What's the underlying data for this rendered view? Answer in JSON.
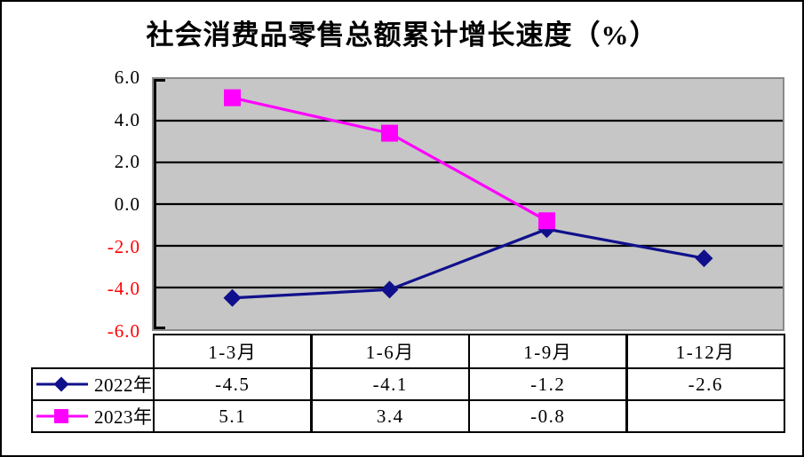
{
  "title": "社会消费品零售总额累计增长速度（%）",
  "colors": {
    "series_2022": "#10108C",
    "series_2023": "#FF00FF",
    "plot_background": "#C6C6C6",
    "gridline": "#000000",
    "axis": "#000000",
    "tick_label_positive": "#000000",
    "tick_label_negative": "#FF0000",
    "table_border": "#000000"
  },
  "chart_data": {
    "type": "line",
    "title": "社会消费品零售总额累计增长速度（%）",
    "categories": [
      "1-3月",
      "1-6月",
      "1-9月",
      "1-12月"
    ],
    "series": [
      {
        "name": "2022年",
        "marker": "diamond",
        "color": "#10108C",
        "values": [
          -4.5,
          -4.1,
          -1.2,
          -2.6
        ]
      },
      {
        "name": "2023年",
        "marker": "square",
        "color": "#FF00FF",
        "values": [
          5.1,
          3.4,
          -0.8,
          null
        ]
      }
    ],
    "ylim": [
      -6.0,
      6.0
    ],
    "ytick_step": 2.0,
    "yticks": [
      "6.0",
      "4.0",
      "2.0",
      "0.0",
      "-2.0",
      "-4.0",
      "-6.0"
    ],
    "grid": "horizontal",
    "plot_area_bg": "#C6C6C6",
    "legend_position": "data-table-left"
  },
  "table": {
    "columns": [
      "1-3月",
      "1-6月",
      "1-9月",
      "1-12月"
    ],
    "rows": [
      {
        "label": "2022年",
        "marker": "diamond",
        "color": "#10108C",
        "values": [
          "-4.5",
          "-4.1",
          "-1.2",
          "-2.6"
        ]
      },
      {
        "label": "2023年",
        "marker": "square",
        "color": "#FF00FF",
        "values": [
          "5.1",
          "3.4",
          "-0.8",
          ""
        ]
      }
    ]
  }
}
